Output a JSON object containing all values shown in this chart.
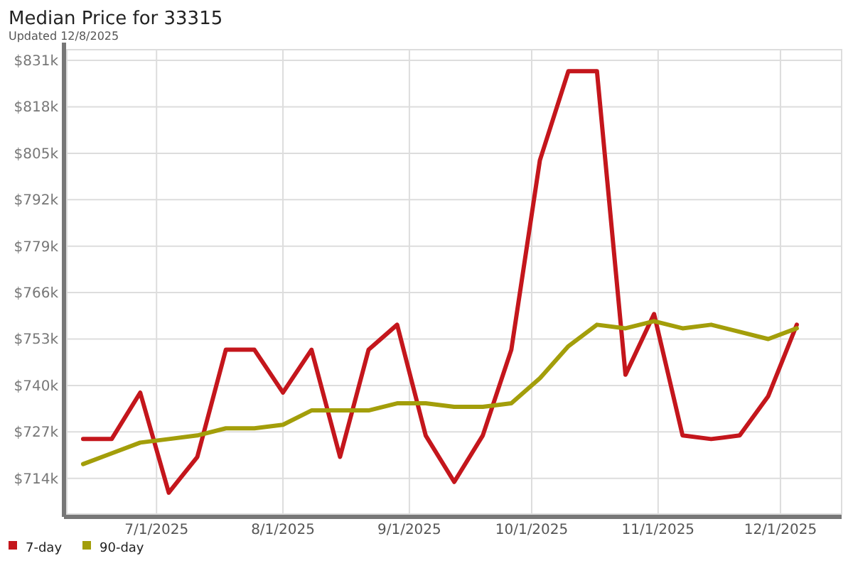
{
  "chart_data": {
    "type": "line",
    "title": "Median Price for 33315",
    "subtitle": "Updated 12/8/2025",
    "x": [
      "2025-06-13",
      "2025-06-20",
      "2025-06-27",
      "2025-07-04",
      "2025-07-11",
      "2025-07-18",
      "2025-07-25",
      "2025-08-01",
      "2025-08-08",
      "2025-08-15",
      "2025-08-22",
      "2025-08-29",
      "2025-09-05",
      "2025-09-12",
      "2025-09-19",
      "2025-09-26",
      "2025-10-03",
      "2025-10-10",
      "2025-10-17",
      "2025-10-24",
      "2025-10-31",
      "2025-11-07",
      "2025-11-14",
      "2025-11-21",
      "2025-11-28",
      "2025-12-05"
    ],
    "series": [
      {
        "name": "7-day",
        "color": "#c4161c",
        "values": [
          725,
          725,
          738,
          710,
          720,
          750,
          750,
          738,
          750,
          720,
          750,
          757,
          726,
          713,
          726,
          750,
          803,
          828,
          828,
          743,
          760,
          726,
          725,
          726,
          737,
          757
        ]
      },
      {
        "name": "90-day",
        "color": "#a39e0a",
        "values": [
          718,
          721,
          724,
          725,
          726,
          728,
          728,
          729,
          733,
          733,
          733,
          735,
          735,
          734,
          734,
          735,
          742,
          751,
          757,
          756,
          758,
          756,
          757,
          755,
          753,
          756
        ]
      }
    ],
    "xlim": [
      "2025-06-09",
      "2025-12-16"
    ],
    "ylim": [
      704,
      834
    ],
    "xticks": [
      {
        "value": "2025-07-01",
        "label": "7/1/2025"
      },
      {
        "value": "2025-08-01",
        "label": "8/1/2025"
      },
      {
        "value": "2025-09-01",
        "label": "9/1/2025"
      },
      {
        "value": "2025-10-01",
        "label": "10/1/2025"
      },
      {
        "value": "2025-11-01",
        "label": "11/1/2025"
      },
      {
        "value": "2025-12-01",
        "label": "12/1/2025"
      }
    ],
    "yticks": [
      {
        "value": 714,
        "label": "$714k"
      },
      {
        "value": 727,
        "label": "$727k"
      },
      {
        "value": 740,
        "label": "$740k"
      },
      {
        "value": 753,
        "label": "$753k"
      },
      {
        "value": 766,
        "label": "$766k"
      },
      {
        "value": 779,
        "label": "$779k"
      },
      {
        "value": 792,
        "label": "$792k"
      },
      {
        "value": 805,
        "label": "$805k"
      },
      {
        "value": 818,
        "label": "$818k"
      },
      {
        "value": 831,
        "label": "$831k"
      }
    ],
    "grid": true,
    "legend": "bottom",
    "marker": "none",
    "line_style": "solid"
  }
}
